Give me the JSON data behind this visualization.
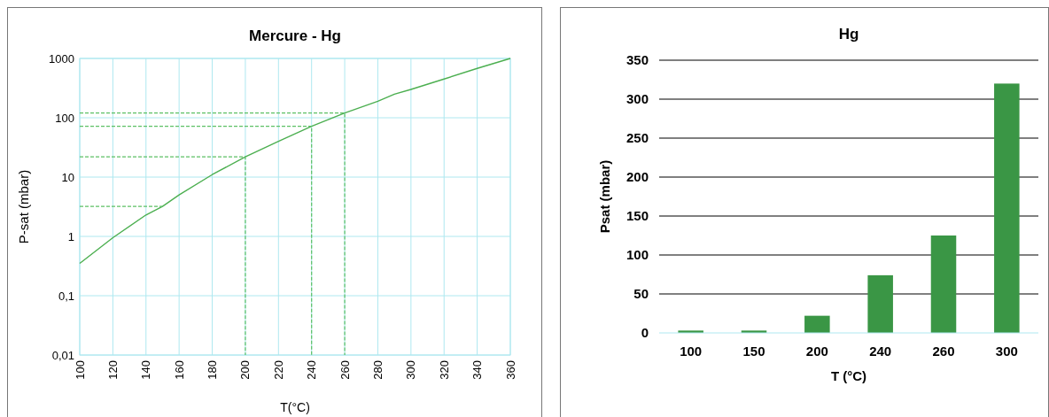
{
  "chart_data": [
    {
      "type": "line",
      "title": "Mercure - Hg",
      "xlabel": "T(°C)",
      "ylabel": "P-sat  (mbar)",
      "log": "y",
      "grid": true,
      "marker": "none",
      "xlim": [
        100,
        360
      ],
      "xticks": [
        100,
        120,
        140,
        160,
        180,
        200,
        220,
        240,
        260,
        280,
        300,
        320,
        340,
        360
      ],
      "ylim": [
        0.01,
        1000
      ],
      "yticks": [
        {
          "value": 0.01,
          "label": "0,01"
        },
        {
          "value": 0.1,
          "label": "0,1"
        },
        1,
        10,
        100,
        1000
      ],
      "series": [
        {
          "color": "#4caf50",
          "line_style": "solid",
          "x": [
            100,
            120,
            140,
            150,
            160,
            180,
            200,
            220,
            240,
            260,
            280,
            290,
            300,
            320,
            340,
            360
          ],
          "values": [
            0.35,
            0.95,
            2.3,
            3.2,
            5,
            11,
            22,
            40,
            72,
            120,
            190,
            250,
            300,
            450,
            680,
            1000
          ]
        },
        {
          "color": "#5cc064",
          "line_style": "dashed",
          "x": [
            100,
            150
          ],
          "values": [
            3.2,
            3.2
          ]
        },
        {
          "color": "#5cc064",
          "line_style": "dashed",
          "x": [
            100,
            200,
            200
          ],
          "values": [
            22,
            22,
            0.01
          ]
        },
        {
          "color": "#5cc064",
          "line_style": "dashed",
          "x": [
            100,
            240,
            240
          ],
          "values": [
            72,
            72,
            0.01
          ]
        },
        {
          "color": "#5cc064",
          "line_style": "dashed",
          "x": [
            100,
            260,
            260
          ],
          "values": [
            120,
            120,
            0.01
          ]
        }
      ]
    },
    {
      "type": "bar",
      "title": "Hg",
      "xlabel": "T (°C)",
      "ylabel": "Psat (mbar)",
      "grid": "y",
      "categories": [
        "100",
        "150",
        "200",
        "240",
        "260",
        "300"
      ],
      "values": [
        3,
        3,
        22,
        74,
        125,
        320
      ],
      "color": "#3a9645",
      "ylim": [
        0,
        350
      ],
      "yticks": [
        0,
        50,
        100,
        150,
        200,
        250,
        300,
        350
      ]
    }
  ]
}
